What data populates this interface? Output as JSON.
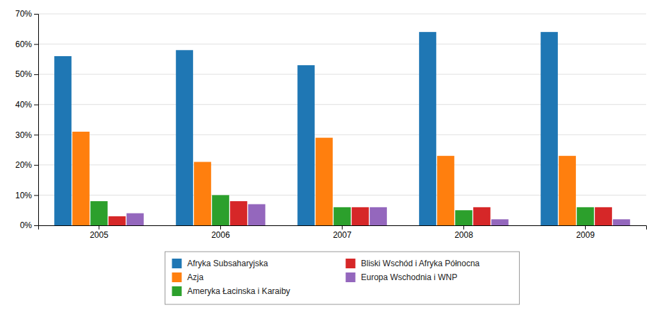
{
  "chart_data": {
    "type": "bar",
    "categories": [
      "2005",
      "2006",
      "2007",
      "2008",
      "2009"
    ],
    "series": [
      {
        "name": "Afryka Subsaharyjska",
        "values": [
          56,
          58,
          53,
          64,
          64
        ]
      },
      {
        "name": "Azja",
        "values": [
          31,
          21,
          29,
          23,
          23
        ]
      },
      {
        "name": "Ameryka Łacinska i Karaiby",
        "values": [
          8,
          10,
          6,
          5,
          6
        ]
      },
      {
        "name": "Bliski Wschód i Afryka Północna",
        "values": [
          3,
          8,
          6,
          6,
          6
        ]
      },
      {
        "name": "Europa Wschodnia i WNP",
        "values": [
          4,
          7,
          6,
          2,
          2
        ]
      }
    ],
    "ylim": [
      0,
      70
    ],
    "yticks": [
      {
        "value": 0,
        "label": "0%"
      },
      {
        "value": 10,
        "label": "10%"
      },
      {
        "value": 20,
        "label": "20%"
      },
      {
        "value": 30,
        "label": "30%"
      },
      {
        "value": 40,
        "label": "40%"
      },
      {
        "value": 50,
        "label": "50%"
      },
      {
        "value": 60,
        "label": "60%"
      },
      {
        "value": 70,
        "label": "70%"
      }
    ],
    "grid": true,
    "legend": "bottom"
  }
}
